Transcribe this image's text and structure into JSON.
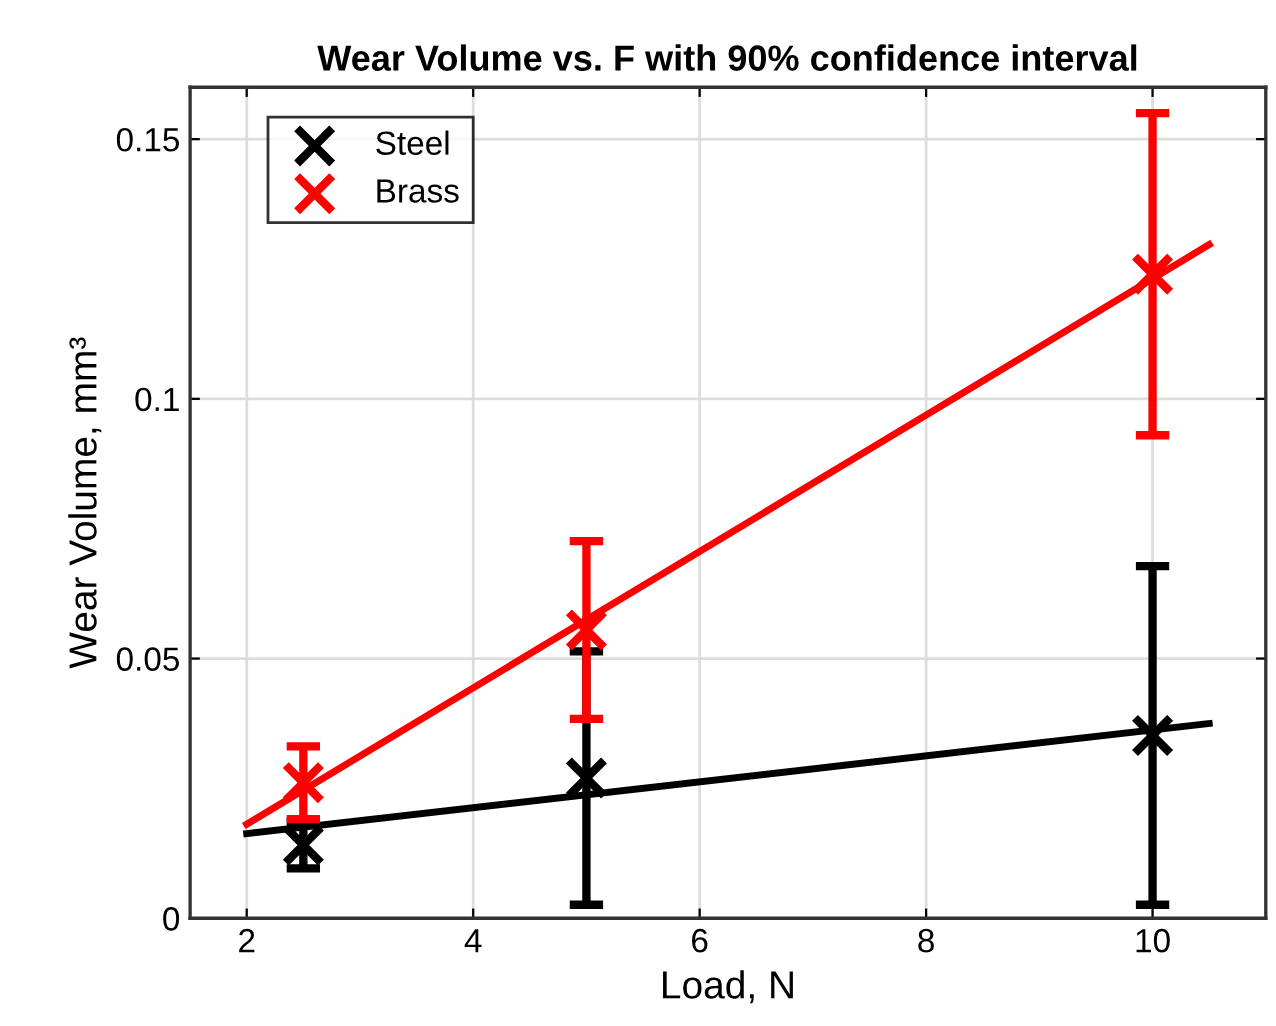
{
  "chart_data": {
    "type": "scatter",
    "title": "Wear Volume vs. F with 90% confidence interval",
    "xlabel": "Load, N",
    "ylabel": "Wear Volume, mm³",
    "xlim": [
      1.5,
      11
    ],
    "xticks": [
      2,
      4,
      6,
      8,
      10
    ],
    "ylim": [
      0,
      0.16
    ],
    "yticks": [
      0,
      0.05,
      0.1,
      0.15
    ],
    "grid": true,
    "legend": "top left",
    "marker": "cross",
    "series": [
      {
        "type": "line",
        "color": "#000000",
        "x": [
          2,
          10.5
        ],
        "values": [
          0.0163,
          0.0375
        ],
        "marker": "none"
      },
      {
        "type": "line",
        "color": "#ff0000",
        "x": [
          2,
          10.5
        ],
        "values": [
          0.0181,
          0.1297
        ],
        "marker": "none"
      },
      {
        "name": "Steel",
        "color": "#000000",
        "x": [
          2.5,
          5,
          10
        ],
        "values": [
          0.0141,
          0.027,
          0.0352
        ],
        "errors": [
          0.0045,
          0.0244,
          0.0326
        ]
      },
      {
        "name": "Brass",
        "color": "#ff0000",
        "x": [
          2.5,
          5,
          10
        ],
        "values": [
          0.0261,
          0.0555,
          0.124
        ],
        "errors": [
          0.007,
          0.0171,
          0.031
        ]
      }
    ]
  }
}
